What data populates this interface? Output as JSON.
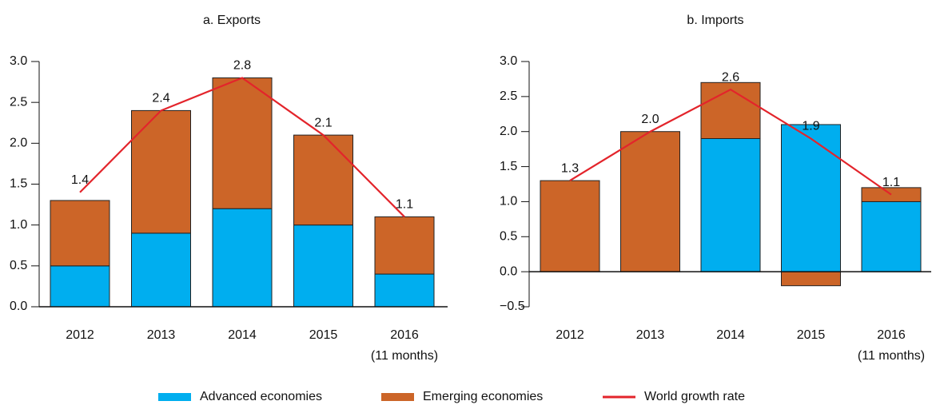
{
  "chart_data": [
    {
      "type": "bar",
      "stacked": true,
      "title": "a. Exports",
      "categories": [
        "2012",
        "2013",
        "2014",
        "2015",
        "2016\n(11 months)"
      ],
      "series": [
        {
          "name": "Advanced economies",
          "color": "#00aeef",
          "values": [
            0.5,
            0.9,
            1.2,
            1.0,
            0.4
          ]
        },
        {
          "name": "Emerging economies",
          "color": "#cc6528",
          "values": [
            0.8,
            1.5,
            1.6,
            1.1,
            0.7
          ]
        },
        {
          "name": "World growth rate",
          "type": "line",
          "color": "#e3242b",
          "values": [
            1.4,
            2.4,
            2.8,
            2.1,
            1.1
          ],
          "value_labels": [
            "1.4",
            "2.4",
            "2.8",
            "2.1",
            "1.1"
          ]
        }
      ],
      "ylim": [
        0,
        3
      ],
      "yticks": [
        {
          "value": 0,
          "label": "0.0"
        },
        0.5,
        {
          "value": 1,
          "label": "1.0"
        },
        1.5,
        {
          "value": 2,
          "label": "2.0"
        },
        2.5,
        {
          "value": 3,
          "label": "3.0"
        }
      ]
    },
    {
      "type": "bar",
      "stacked": true,
      "title": "b. Imports",
      "categories": [
        "2012",
        "2013",
        "2014",
        "2015",
        "2016\n(11 months)"
      ],
      "series": [
        {
          "name": "Advanced economies",
          "color": "#00aeef",
          "values": [
            0,
            0,
            1.9,
            2.1,
            1.0
          ]
        },
        {
          "name": "Emerging economies",
          "color": "#cc6528",
          "values": [
            1.3,
            2.0,
            0.8,
            -0.2,
            0.2
          ]
        },
        {
          "name": "World growth rate",
          "type": "line",
          "color": "#e3242b",
          "values": [
            1.3,
            2.0,
            2.6,
            1.9,
            1.1
          ],
          "value_labels": [
            "1.3",
            "2.0",
            "2.6",
            "1.9",
            "1.1"
          ]
        }
      ],
      "ylim": [
        -0.5,
        3
      ],
      "yticks": [
        {
          "value": -0.5,
          "label": "−0.5"
        },
        {
          "value": 0,
          "label": "0.0"
        },
        0.5,
        {
          "value": 1,
          "label": "1.0"
        },
        1.5,
        {
          "value": 2,
          "label": "2.0"
        },
        2.5,
        {
          "value": 3,
          "label": "3.0"
        }
      ]
    }
  ]
}
